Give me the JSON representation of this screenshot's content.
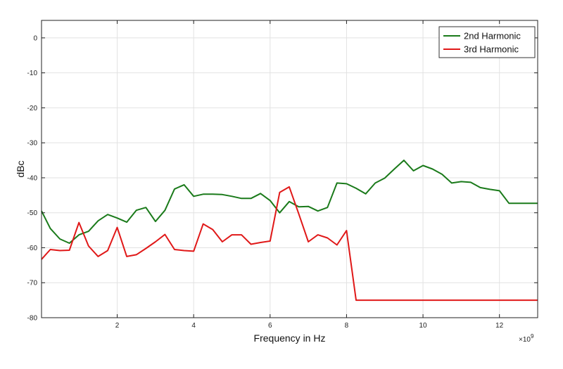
{
  "chart_data": {
    "type": "line",
    "xlabel": "Frequency in Hz",
    "ylabel": "dBc",
    "x_exponent_label": "×10",
    "x_exponent_power": "9",
    "xlim": [
      0.02,
      13
    ],
    "ylim": [
      -80,
      5
    ],
    "xticks": [
      2,
      4,
      6,
      8,
      10,
      12
    ],
    "xtick_labels": [
      "2",
      "4",
      "6",
      "8",
      "10",
      "12"
    ],
    "yticks": [
      0,
      -10,
      -20,
      -30,
      -40,
      -50,
      -60,
      -70,
      -80
    ],
    "ytick_labels": [
      "0",
      "-10",
      "-20",
      "-30",
      "-40",
      "-50",
      "-60",
      "-70",
      "-80"
    ],
    "grid": true,
    "legend_position": "top-right",
    "series": [
      {
        "name": "2nd Harmonic",
        "color": "#1a7a1a",
        "x": [
          0.02,
          0.25,
          0.5,
          0.75,
          1.0,
          1.25,
          1.5,
          1.75,
          2.0,
          2.25,
          2.5,
          2.75,
          3.0,
          3.25,
          3.5,
          3.75,
          4.0,
          4.25,
          4.5,
          4.75,
          5.0,
          5.25,
          5.5,
          5.75,
          6.0,
          6.25,
          6.5,
          6.75,
          7.0,
          7.25,
          7.5,
          7.75,
          8.0,
          8.25,
          8.5,
          8.75,
          9.0,
          9.25,
          9.5,
          9.75,
          10.0,
          10.25,
          10.5,
          10.75,
          11.0,
          11.25,
          11.5,
          11.75,
          12.0,
          12.25,
          12.5,
          12.75,
          13.0
        ],
        "y": [
          -49.5,
          -54.5,
          -57.5,
          -58.7,
          -56.3,
          -55.3,
          -52.3,
          -50.5,
          -51.5,
          -52.7,
          -49.3,
          -48.5,
          -52.5,
          -49.3,
          -43.2,
          -42.0,
          -45.3,
          -44.7,
          -44.7,
          -44.8,
          -45.3,
          -45.9,
          -45.9,
          -44.5,
          -46.5,
          -50.0,
          -46.8,
          -48.3,
          -48.2,
          -49.5,
          -48.5,
          -41.5,
          -41.7,
          -43.0,
          -44.6,
          -41.5,
          -40.1,
          -37.5,
          -35.0,
          -38.0,
          -36.5,
          -37.5,
          -39.0,
          -41.5,
          -41.1,
          -41.3,
          -42.8,
          -43.3,
          -43.7,
          -47.3,
          -47.3,
          -47.3,
          -47.3
        ]
      },
      {
        "name": "3rd Harmonic",
        "color": "#e01818",
        "x": [
          0.02,
          0.25,
          0.5,
          0.75,
          1.0,
          1.25,
          1.5,
          1.75,
          2.0,
          2.25,
          2.5,
          2.75,
          3.0,
          3.25,
          3.5,
          3.75,
          4.0,
          4.25,
          4.5,
          4.75,
          5.0,
          5.25,
          5.5,
          5.75,
          6.0,
          6.25,
          6.5,
          6.75,
          7.0,
          7.25,
          7.5,
          7.75,
          8.0,
          8.25,
          8.5,
          8.75,
          9.0,
          13.0
        ],
        "y": [
          -63.3,
          -60.5,
          -60.8,
          -60.7,
          -52.8,
          -59.5,
          -62.5,
          -60.8,
          -54.2,
          -62.5,
          -62.0,
          -60.2,
          -58.3,
          -56.2,
          -60.5,
          -60.8,
          -61.0,
          -53.2,
          -54.8,
          -58.3,
          -56.3,
          -56.3,
          -59.0,
          -58.5,
          -58.1,
          -44.2,
          -42.6,
          -50.3,
          -58.3,
          -56.3,
          -57.2,
          -59.2,
          -55.1,
          -75.0,
          -75.0,
          -75.0,
          -75.0,
          -75.0
        ]
      }
    ]
  }
}
